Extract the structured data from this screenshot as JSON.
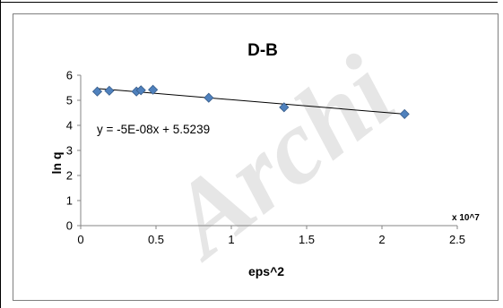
{
  "chart_data": {
    "type": "scatter",
    "title": "D-B",
    "xlabel": "eps^2",
    "ylabel": "ln q",
    "x_multiplier_label": "x 10^7",
    "xlim": [
      0,
      2.5
    ],
    "ylim": [
      0,
      6
    ],
    "x_ticks": [
      "0",
      "0.5",
      "1",
      "1.5",
      "2",
      "2.5"
    ],
    "y_ticks": [
      "0",
      "1",
      "2",
      "3",
      "4",
      "5",
      "6"
    ],
    "grid": false,
    "legend": "none",
    "series": [
      {
        "x": [
          0.11,
          0.19,
          0.37,
          0.4,
          0.48,
          0.85,
          1.35,
          2.15
        ],
        "y": [
          5.35,
          5.38,
          5.35,
          5.4,
          5.42,
          5.1,
          4.72,
          4.45
        ],
        "marker": "diamond",
        "color": "#4f81bd"
      }
    ],
    "trendline": {
      "slope": -0.5,
      "intercept": 5.5239,
      "x_range": [
        0.11,
        2.15
      ],
      "color": "#000000",
      "equation_text": "y = -5E-08x + 5.5239"
    }
  },
  "watermark": {
    "text": "Archi",
    "color": "#e6e6e6"
  }
}
